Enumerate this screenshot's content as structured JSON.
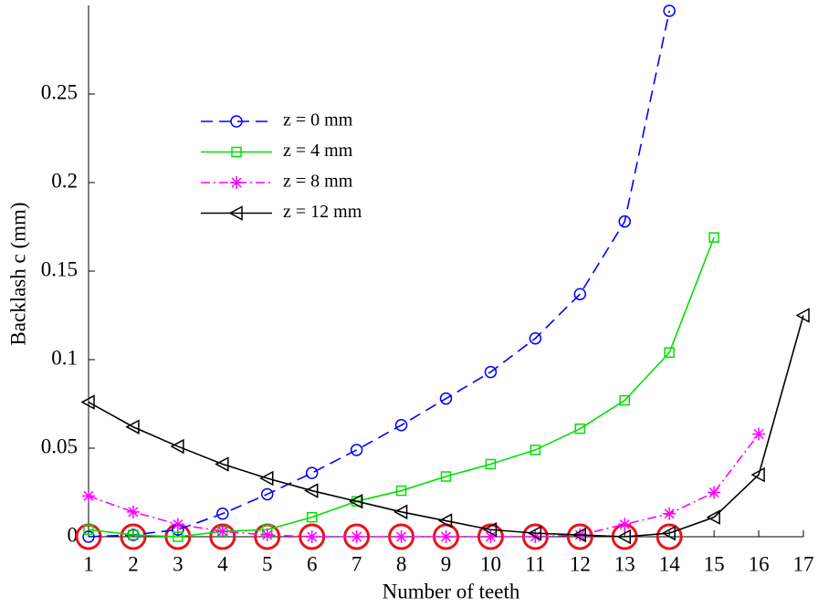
{
  "chart_data": {
    "type": "line",
    "xlabel": "Number of teeth",
    "ylabel": "Backlash c (mm)",
    "xlim": [
      1,
      17
    ],
    "ylim": [
      0,
      0.3
    ],
    "xticks": [
      1,
      2,
      3,
      4,
      5,
      6,
      7,
      8,
      9,
      10,
      11,
      12,
      13,
      14,
      15,
      16,
      17
    ],
    "yticks": [
      0,
      0.05,
      0.1,
      0.15,
      0.2,
      0.25
    ],
    "grid": false,
    "legend": "upper-left",
    "series": [
      {
        "name": "z = 0 mm",
        "color": "#0000ff",
        "dash": "13,7",
        "marker": "circle",
        "x": [
          1,
          2,
          3,
          4,
          5,
          6,
          7,
          8,
          9,
          10,
          11,
          12,
          13,
          14
        ],
        "values": [
          0,
          0.001,
          0.004,
          0.013,
          0.024,
          0.036,
          0.049,
          0.063,
          0.078,
          0.093,
          0.112,
          0.137,
          0.178,
          0.297
        ]
      },
      {
        "name": "z = 4 mm",
        "color": "#00e000",
        "dash": "none",
        "marker": "square",
        "x": [
          1,
          2,
          3,
          4,
          5,
          6,
          7,
          8,
          9,
          10,
          11,
          12,
          13,
          14,
          15
        ],
        "values": [
          0.004,
          0.001,
          0,
          0.003,
          0.004,
          0.011,
          0.02,
          0.026,
          0.034,
          0.041,
          0.049,
          0.061,
          0.077,
          0.104,
          0.169
        ]
      },
      {
        "name": "z = 8 mm",
        "color": "#ff00ff",
        "dash": "10,4,2,4",
        "marker": "star",
        "x": [
          1,
          2,
          3,
          4,
          5,
          6,
          7,
          8,
          9,
          10,
          11,
          12,
          13,
          14,
          15,
          16
        ],
        "values": [
          0.023,
          0.014,
          0.007,
          0.003,
          0.001,
          0,
          0,
          0,
          0,
          0,
          0,
          0.001,
          0.007,
          0.013,
          0.025,
          0.058
        ]
      },
      {
        "name": "z = 12 mm",
        "color": "#000000",
        "dash": "none",
        "marker": "triangle-left",
        "x": [
          1,
          2,
          3,
          4,
          5,
          6,
          7,
          8,
          9,
          10,
          11,
          12,
          13,
          14,
          15,
          16,
          17
        ],
        "values": [
          0.076,
          0.062,
          0.051,
          0.041,
          0.033,
          0.026,
          0.02,
          0.014,
          0.009,
          0.004,
          0.002,
          0.001,
          0,
          0.002,
          0.011,
          0.035,
          0.125
        ]
      }
    ],
    "highlight": {
      "color": "#e8141c",
      "x": [
        1,
        2,
        3,
        4,
        5,
        6,
        7,
        8,
        9,
        10,
        11,
        12,
        13,
        14
      ],
      "values": [
        0,
        0,
        0,
        0,
        0,
        0,
        0,
        0,
        0,
        0,
        0,
        0,
        0,
        0
      ]
    }
  }
}
